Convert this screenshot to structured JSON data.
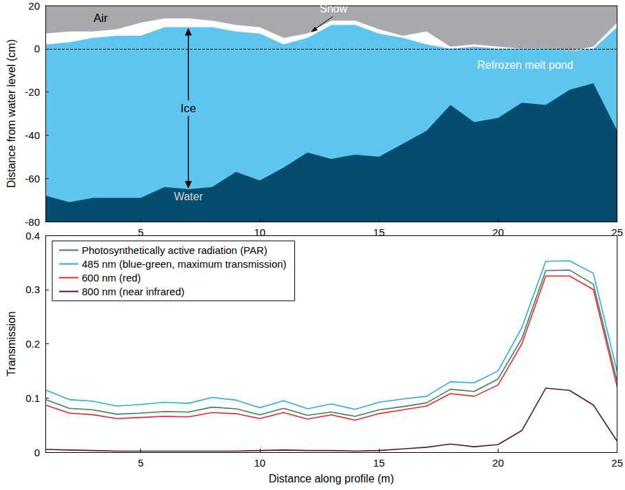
{
  "chart_data": [
    {
      "type": "area",
      "ylabel": "Distance from water level (cm)",
      "x": [
        1,
        2,
        3,
        4,
        5,
        6,
        7,
        8,
        9,
        10,
        11,
        12,
        13,
        14,
        15,
        16,
        17,
        18,
        19,
        20,
        21,
        22,
        23,
        24,
        25
      ],
      "xlim": [
        1,
        25
      ],
      "xticks": [
        5,
        10,
        15,
        20,
        25
      ],
      "ylim": [
        -80,
        20
      ],
      "yticks": [
        -80,
        -60,
        -40,
        -20,
        0,
        20
      ],
      "water_level": 0,
      "annotations": [
        "Refrozen melt pond"
      ],
      "series": [
        {
          "name": "Air",
          "color": "#a7a9ac",
          "values": [
            20,
            20,
            20,
            20,
            20,
            20,
            20,
            20,
            20,
            20,
            20,
            20,
            20,
            20,
            20,
            20,
            20,
            20,
            20,
            20,
            20,
            20,
            20,
            20,
            20
          ]
        },
        {
          "name": "Snow",
          "color": "#ffffff",
          "values": [
            7,
            8,
            8,
            9,
            12,
            14,
            14,
            13,
            11,
            10,
            5,
            7,
            13,
            13,
            9,
            6,
            8,
            1,
            2,
            1,
            0,
            0,
            -1,
            1,
            12
          ]
        },
        {
          "name": "Ice",
          "color": "#5ec6ee",
          "values": [
            2,
            3,
            5,
            6,
            6,
            10,
            10,
            10,
            8,
            7,
            2,
            5,
            11,
            11,
            7,
            5,
            2,
            0,
            1,
            0,
            0,
            0,
            -1,
            0,
            10
          ]
        },
        {
          "name": "Water",
          "color": "#044d6e",
          "values": [
            -68,
            -71,
            -69,
            -69,
            -69,
            -64,
            -65,
            -64,
            -57,
            -61,
            -55,
            -48,
            -51,
            -49,
            -50,
            -44,
            -38,
            -26,
            -34,
            -32,
            -25,
            -26,
            -19,
            -16,
            -38
          ]
        }
      ]
    },
    {
      "type": "line",
      "xlabel": "Distance along profile (m)",
      "ylabel": "Transmission",
      "x": [
        1,
        2,
        3,
        4,
        5,
        6,
        7,
        8,
        9,
        10,
        11,
        12,
        13,
        14,
        15,
        16,
        17,
        18,
        19,
        20,
        21,
        22,
        23,
        24,
        25
      ],
      "xlim": [
        1,
        25
      ],
      "xticks": [
        5,
        10,
        15,
        20,
        25
      ],
      "ylim": [
        0,
        0.4
      ],
      "yticks": [
        0,
        0.1,
        0.2,
        0.3,
        0.4
      ],
      "legend": "upper left",
      "series": [
        {
          "name": "Photosynthetically active radiation (PAR)",
          "color": "#3d7f5c",
          "values": [
            0.097,
            0.081,
            0.078,
            0.07,
            0.072,
            0.075,
            0.074,
            0.083,
            0.08,
            0.069,
            0.081,
            0.068,
            0.074,
            0.066,
            0.078,
            0.084,
            0.091,
            0.116,
            0.112,
            0.135,
            0.21,
            0.335,
            0.336,
            0.31,
            0.13
          ]
        },
        {
          "name": "485 nm (blue-green, maximum transmission)",
          "color": "#29aae1",
          "values": [
            0.115,
            0.097,
            0.094,
            0.085,
            0.088,
            0.092,
            0.09,
            0.101,
            0.096,
            0.082,
            0.095,
            0.08,
            0.089,
            0.079,
            0.092,
            0.098,
            0.103,
            0.13,
            0.128,
            0.15,
            0.23,
            0.352,
            0.353,
            0.33,
            0.148
          ]
        },
        {
          "name": "600 nm (red)",
          "color": "#e8262a",
          "values": [
            0.087,
            0.072,
            0.069,
            0.062,
            0.064,
            0.066,
            0.065,
            0.073,
            0.071,
            0.062,
            0.073,
            0.061,
            0.069,
            0.059,
            0.071,
            0.078,
            0.085,
            0.108,
            0.103,
            0.124,
            0.2,
            0.325,
            0.325,
            0.3,
            0.12
          ]
        },
        {
          "name": "800 nm (near infrared)",
          "color": "#5b1231",
          "values": [
            0.005,
            0.004,
            0.003,
            0.002,
            0.002,
            0.002,
            0.002,
            0.002,
            0.002,
            0.003,
            0.004,
            0.003,
            0.003,
            0.002,
            0.003,
            0.006,
            0.009,
            0.015,
            0.01,
            0.014,
            0.04,
            0.118,
            0.114,
            0.087,
            0.02
          ]
        }
      ]
    }
  ]
}
